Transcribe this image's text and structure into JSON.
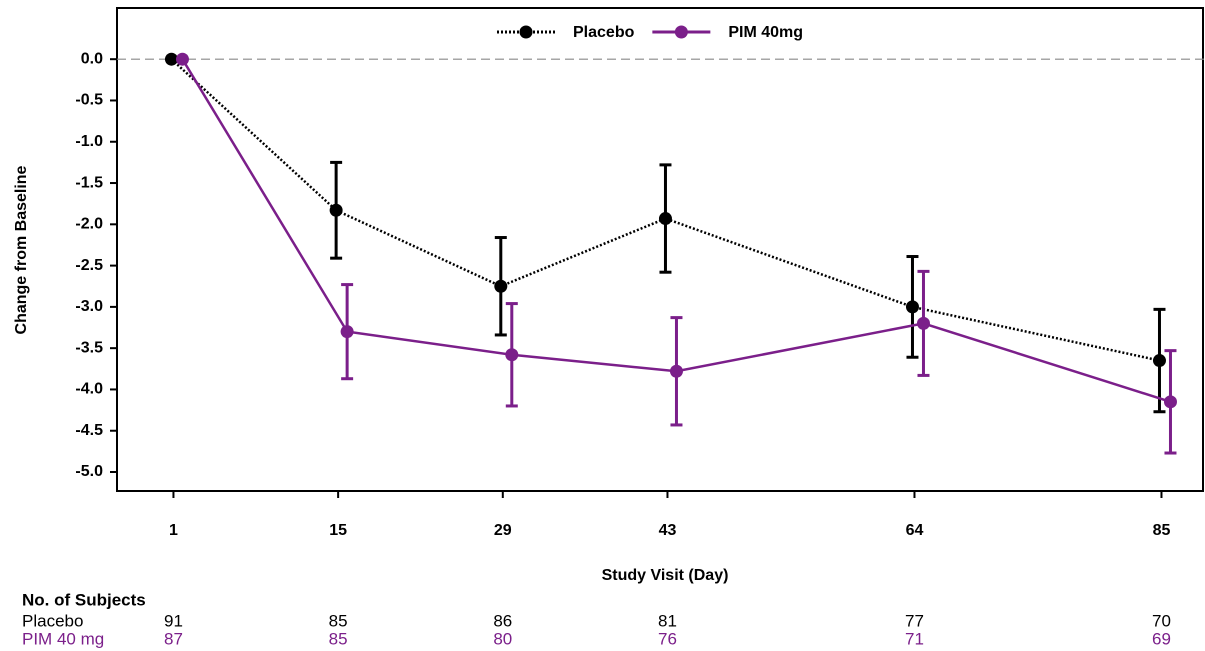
{
  "chart_data": {
    "type": "line",
    "x_label": "Study Visit (Day)",
    "y_label": "Change from Baseline",
    "x": [
      1,
      15,
      29,
      43,
      64,
      85
    ],
    "xlim": [
      -3.8,
      88.7
    ],
    "xticks": [
      1,
      15,
      29,
      43,
      64,
      85
    ],
    "ylim": [
      -5.23,
      0.62
    ],
    "yticks": [
      {
        "value": 0,
        "label": "0.0"
      },
      {
        "value": -0.5,
        "label": "-0.5"
      },
      {
        "value": -1,
        "label": "-1.0"
      },
      {
        "value": -1.5,
        "label": "-1.5"
      },
      {
        "value": -2,
        "label": "-2.0"
      },
      {
        "value": -2.5,
        "label": "-2.5"
      },
      {
        "value": -3,
        "label": "-3.0"
      },
      {
        "value": -3.5,
        "label": "-3.5"
      },
      {
        "value": -4,
        "label": "-4.0"
      },
      {
        "value": -4.5,
        "label": "-4.5"
      },
      {
        "value": -5,
        "label": "-5.0"
      }
    ],
    "reference_line": 0,
    "legend": "top",
    "series": [
      {
        "name": "Placebo",
        "color": "#000000",
        "style": "dotted",
        "values": [
          0,
          -1.83,
          -2.75,
          -1.93,
          -3.0,
          -3.65
        ],
        "errors": [
          null,
          0.58,
          0.59,
          0.65,
          0.61,
          0.62
        ]
      },
      {
        "name": "PIM 40mg",
        "color": "#7b1f8a",
        "style": "solid",
        "values": [
          0,
          -3.3,
          -3.58,
          -3.78,
          -3.2,
          -4.15
        ],
        "errors": [
          null,
          0.57,
          0.62,
          0.65,
          0.63,
          0.62
        ]
      }
    ],
    "subjects_table": {
      "title": "No. of Subjects",
      "rows": [
        {
          "label": "Placebo",
          "color": "#000000",
          "values": [
            91,
            85,
            86,
            81,
            77,
            70
          ]
        },
        {
          "label": "PIM 40 mg",
          "color": "#7b1f8a",
          "values": [
            87,
            85,
            80,
            76,
            71,
            69
          ]
        }
      ]
    }
  }
}
